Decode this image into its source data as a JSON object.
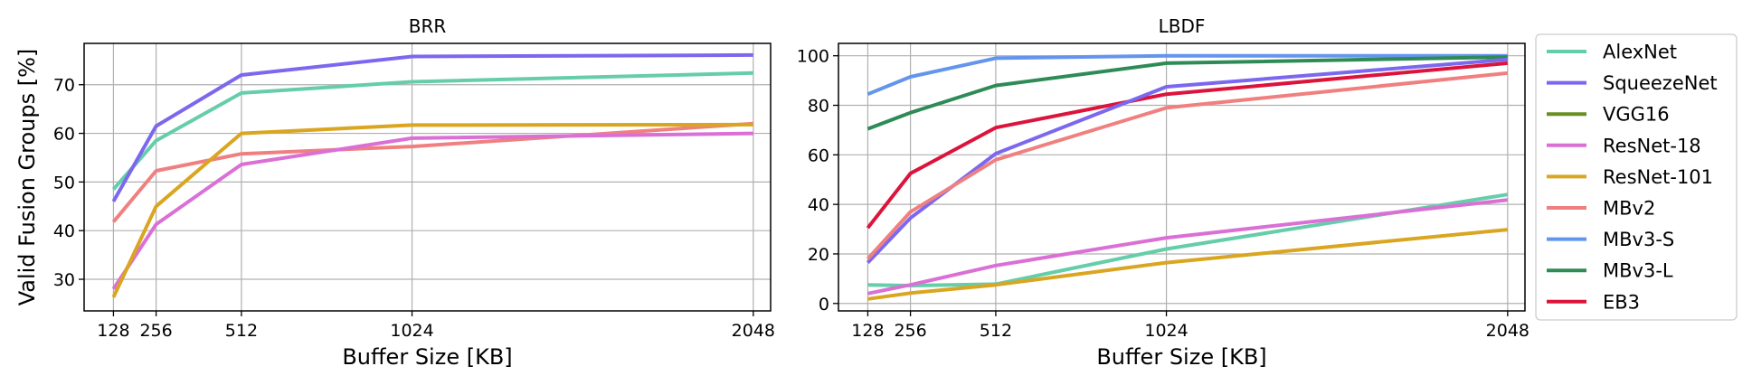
{
  "chart_data": [
    {
      "type": "line",
      "title": "BRR",
      "xlabel": "Buffer Size [KB]",
      "ylabel": "Valid Fusion Groups [%]",
      "x": [
        128,
        256,
        512,
        1024,
        2048
      ],
      "x_ticks": [
        "128",
        "256",
        "512",
        "1024",
        "2048"
      ],
      "xlim": [
        40,
        2100
      ],
      "ylim": [
        23.5,
        78.5
      ],
      "y_ticks": [
        "30",
        "40",
        "50",
        "60",
        "70"
      ],
      "y_tick_values": [
        30,
        40,
        50,
        60,
        70
      ],
      "grid": true,
      "series": [
        {
          "name": "AlexNet",
          "color": "#66cdaa",
          "values": [
            48.5,
            58.5,
            68.3,
            70.6,
            72.4
          ]
        },
        {
          "name": "SqueezeNet",
          "color": "#7b68ee",
          "values": [
            46.0,
            61.5,
            72.0,
            75.8,
            76.1
          ]
        },
        {
          "name": "MBv2",
          "color": "#f08080",
          "values": [
            41.8,
            52.3,
            55.8,
            57.3,
            62.0
          ]
        },
        {
          "name": "ResNet-18",
          "color": "#da70d6",
          "values": [
            28.0,
            41.3,
            53.6,
            59.0,
            60.0
          ]
        },
        {
          "name": "ResNet-101",
          "color": "#daa520",
          "values": [
            26.3,
            45.0,
            60.0,
            61.7,
            61.8
          ]
        }
      ]
    },
    {
      "type": "line",
      "title": "LBDF",
      "xlabel": "Buffer Size [KB]",
      "ylabel": "",
      "x": [
        128,
        256,
        512,
        1024,
        2048
      ],
      "x_ticks": [
        "128",
        "256",
        "512",
        "1024",
        "2048"
      ],
      "xlim": [
        40,
        2100
      ],
      "ylim": [
        -3,
        105
      ],
      "y_ticks": [
        "0",
        "20",
        "40",
        "60",
        "80",
        "100"
      ],
      "y_tick_values": [
        0,
        20,
        40,
        60,
        80,
        100
      ],
      "grid": true,
      "series": [
        {
          "name": "MBv3-S",
          "color": "#6495ed",
          "values": [
            84.5,
            91.5,
            99.0,
            100.0,
            100.0
          ]
        },
        {
          "name": "MBv3-L",
          "color": "#2e8b57",
          "values": [
            70.5,
            77.0,
            88.0,
            97.0,
            99.5
          ]
        },
        {
          "name": "EB3",
          "color": "#dc143c",
          "values": [
            30.5,
            52.5,
            71.0,
            84.5,
            97.0
          ]
        },
        {
          "name": "SqueezeNet",
          "color": "#7b68ee",
          "values": [
            16.5,
            34.5,
            60.5,
            87.5,
            98.5
          ]
        },
        {
          "name": "MBv2",
          "color": "#f08080",
          "values": [
            18.0,
            37.0,
            58.0,
            79.0,
            93.0
          ]
        },
        {
          "name": "AlexNet",
          "color": "#66cdaa",
          "values": [
            7.5,
            7.2,
            7.8,
            22.0,
            44.0
          ]
        },
        {
          "name": "ResNet-18",
          "color": "#da70d6",
          "values": [
            4.0,
            7.5,
            15.3,
            26.5,
            41.8
          ]
        },
        {
          "name": "ResNet-101",
          "color": "#daa520",
          "values": [
            1.8,
            4.2,
            7.5,
            16.5,
            29.8
          ]
        }
      ]
    }
  ],
  "legend": {
    "placement": "right",
    "entries": [
      {
        "label": "AlexNet",
        "color": "#66cdaa"
      },
      {
        "label": "SqueezeNet",
        "color": "#7b68ee"
      },
      {
        "label": "VGG16",
        "color": "#6b8e23"
      },
      {
        "label": "ResNet-18",
        "color": "#da70d6"
      },
      {
        "label": "ResNet-101",
        "color": "#daa520"
      },
      {
        "label": "MBv2",
        "color": "#f08080"
      },
      {
        "label": "MBv3-S",
        "color": "#6495ed"
      },
      {
        "label": "MBv3-L",
        "color": "#2e8b57"
      },
      {
        "label": "EB3",
        "color": "#dc143c"
      }
    ]
  }
}
